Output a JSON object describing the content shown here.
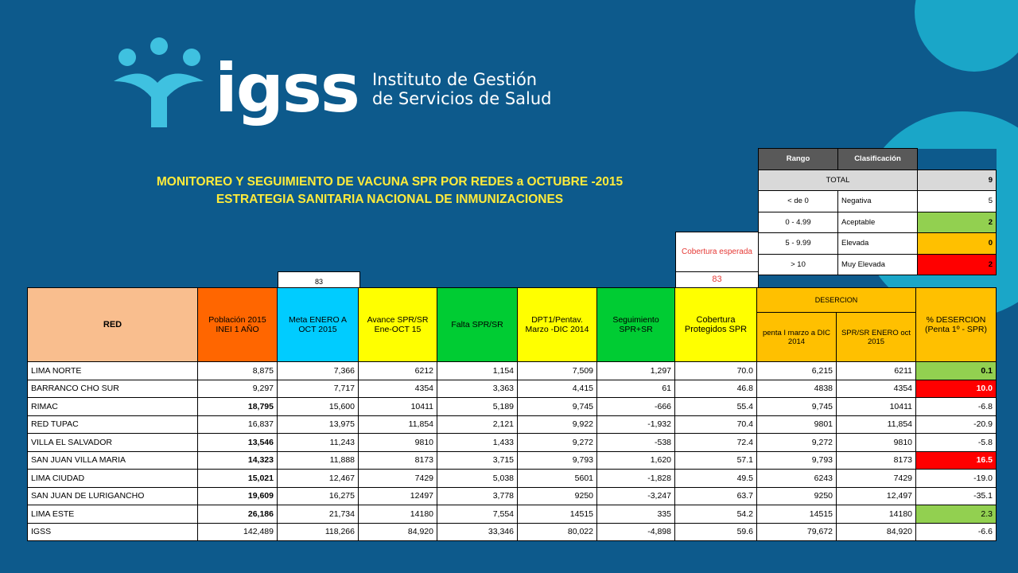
{
  "brand": {
    "short": "igss",
    "line1": "Instituto de Gestión",
    "line2": "de Servicios de Salud"
  },
  "title": {
    "line1": "MONITOREO Y SEGUIMIENTO DE VACUNA SPR POR REDES a OCTUBRE -2015",
    "line2": "ESTRATEGIA SANITARIA NACIONAL DE INMUNIZACIONES"
  },
  "legend": {
    "headers": [
      "Rango",
      "Clasificación"
    ],
    "total_label": "TOTAL",
    "total_value": "9",
    "rows": [
      {
        "rango": "< de 0",
        "clasif": "Negativa",
        "count": "5",
        "color": "#ffffff"
      },
      {
        "rango": "0 - 4.99",
        "clasif": "Aceptable",
        "count": "2",
        "color": "#92d050"
      },
      {
        "rango": "5 - 9.99",
        "clasif": "Elevada",
        "count": "0",
        "color": "#ffc000"
      },
      {
        "rango": "> 10",
        "clasif": "Muy Elevada",
        "count": "2",
        "color": "#ff0000"
      }
    ]
  },
  "cobertura_esperada": {
    "label": "Cobertura esperada",
    "value": "83"
  },
  "meta_value": "83",
  "table": {
    "headers": {
      "red": "RED",
      "poblacion": "Población 2015 INEI 1 AÑO",
      "meta": "Meta ENERO A OCT 2015",
      "avance": "Avance SPR/SR Ene-OCT 15",
      "falta": "Falta SPR/SR",
      "dpt": "DPT1/Pentav. Marzo -DIC 2014",
      "seguimiento": "Seguimiento SPR+SR",
      "cobertura": "Cobertura Protegidos SPR",
      "desercion": "DESERCION",
      "penta": "penta I marzo a DIC 2014",
      "spr_sr": "SPR/SR ENERO oct 2015",
      "pct_desercion": "% DESERCION (Penta 1º - SPR)"
    },
    "colors": {
      "red": "#f9be8e",
      "poblacion": "#ff6600",
      "meta": "#00ccff",
      "avance": "#ffff00",
      "falta": "#00cc33",
      "dpt": "#ffff00",
      "seguimiento": "#00cc33",
      "cobertura": "#ffff00",
      "desercion": "#ffc000"
    },
    "rows": [
      {
        "red": "LIMA NORTE",
        "pob": "8,875",
        "pob_bold": false,
        "meta": "7,366",
        "avance": "6212",
        "falta": "1,154",
        "dpt": "7,509",
        "seg": "1,297",
        "cob": "70.0",
        "penta": "6,215",
        "spr": "6211",
        "pct": "0.1",
        "pct_color": "#92d050",
        "pct_bold": true,
        "pct_fg": "#000000"
      },
      {
        "red": "BARRANCO CHO SUR",
        "pob": "9,297",
        "pob_bold": false,
        "meta": "7,717",
        "avance": "4354",
        "falta": "3,363",
        "dpt": "4,415",
        "seg": "61",
        "cob": "46.8",
        "penta": "4838",
        "spr": "4354",
        "pct": "10.0",
        "pct_color": "#ff0000",
        "pct_bold": true,
        "pct_fg": "#ffffff"
      },
      {
        "red": "RIMAC",
        "pob": "18,795",
        "pob_bold": true,
        "meta": "15,600",
        "avance": "10411",
        "falta": "5,189",
        "dpt": "9,745",
        "seg": "-666",
        "cob": "55.4",
        "penta": "9,745",
        "spr": "10411",
        "pct": "-6.8",
        "pct_color": "#ffffff",
        "pct_bold": false,
        "pct_fg": "#000000"
      },
      {
        "red": "RED TUPAC",
        "pob": "16,837",
        "pob_bold": false,
        "meta": "13,975",
        "avance": "11,854",
        "falta": "2,121",
        "dpt": "9,922",
        "seg": "-1,932",
        "cob": "70.4",
        "penta": "9801",
        "spr": "11,854",
        "pct": "-20.9",
        "pct_color": "#ffffff",
        "pct_bold": false,
        "pct_fg": "#000000"
      },
      {
        "red": "VILLA EL SALVADOR",
        "pob": "13,546",
        "pob_bold": true,
        "meta": "11,243",
        "avance": "9810",
        "falta": "1,433",
        "dpt": "9,272",
        "seg": "-538",
        "cob": "72.4",
        "penta": "9,272",
        "spr": "9810",
        "pct": "-5.8",
        "pct_color": "#ffffff",
        "pct_bold": false,
        "pct_fg": "#000000"
      },
      {
        "red": "SAN JUAN VILLA MARIA",
        "pob": "14,323",
        "pob_bold": true,
        "meta": "11,888",
        "avance": "8173",
        "falta": "3,715",
        "dpt": "9,793",
        "seg": "1,620",
        "cob": "57.1",
        "penta": "9,793",
        "spr": "8173",
        "pct": "16.5",
        "pct_color": "#ff0000",
        "pct_bold": true,
        "pct_fg": "#ffffff"
      },
      {
        "red": "LIMA CIUDAD",
        "pob": "15,021",
        "pob_bold": true,
        "meta": "12,467",
        "avance": "7429",
        "falta": "5,038",
        "dpt": "5601",
        "seg": "-1,828",
        "cob": "49.5",
        "penta": "6243",
        "spr": "7429",
        "pct": "-19.0",
        "pct_color": "#ffffff",
        "pct_bold": false,
        "pct_fg": "#000000"
      },
      {
        "red": "SAN JUAN DE LURIGANCHO",
        "pob": "19,609",
        "pob_bold": true,
        "meta": "16,275",
        "avance": "12497",
        "falta": "3,778",
        "dpt": "9250",
        "seg": "-3,247",
        "cob": "63.7",
        "penta": "9250",
        "spr": "12,497",
        "pct": "-35.1",
        "pct_color": "#ffffff",
        "pct_bold": false,
        "pct_fg": "#000000"
      },
      {
        "red": "LIMA ESTE",
        "pob": "26,186",
        "pob_bold": true,
        "meta": "21,734",
        "avance": "14180",
        "falta": "7,554",
        "dpt": "14515",
        "seg": "335",
        "cob": "54.2",
        "penta": "14515",
        "spr": "14180",
        "pct": "2.3",
        "pct_color": "#92d050",
        "pct_bold": false,
        "pct_fg": "#000000"
      },
      {
        "red": "IGSS",
        "pob": "142,489",
        "pob_bold": false,
        "meta": "118,266",
        "avance": "84,920",
        "falta": "33,346",
        "dpt": "80,022",
        "seg": "-4,898",
        "cob": "59.6",
        "penta": "79,672",
        "spr": "84,920",
        "pct": "-6.6",
        "pct_color": "#ffffff",
        "pct_bold": false,
        "pct_fg": "#000000"
      }
    ]
  }
}
